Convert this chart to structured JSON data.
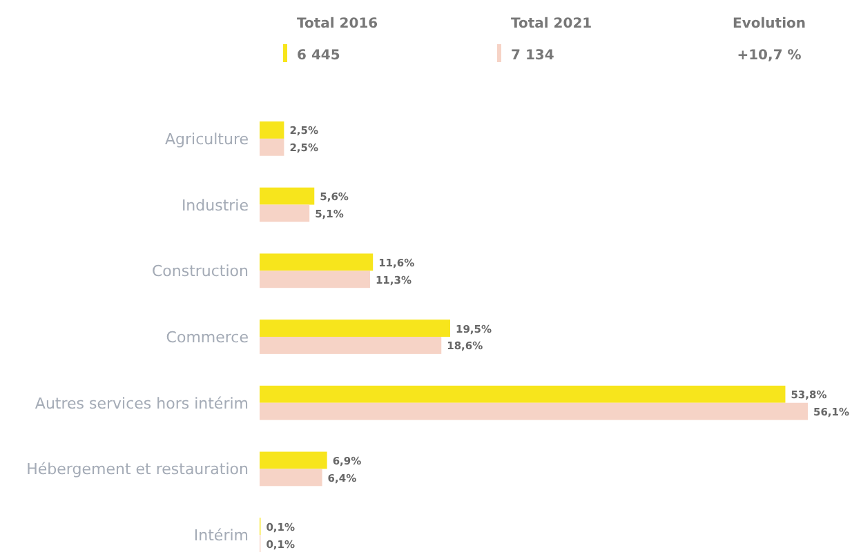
{
  "chart_data": {
    "type": "bar",
    "orientation": "horizontal",
    "categories": [
      "Agriculture",
      "Industrie",
      "Construction",
      "Commerce",
      "Autres services hors intérim",
      "Hébergement et restauration",
      "Intérim"
    ],
    "series": [
      {
        "name": "Total 2016",
        "color": "#f7e51c",
        "values": [
          2.5,
          5.6,
          11.6,
          19.5,
          53.8,
          6.9,
          0.1
        ],
        "value_labels": [
          "2,5%",
          "5,6%",
          "11,6%",
          "19,5%",
          "53,8%",
          "6,9%",
          "0,1%"
        ]
      },
      {
        "name": "Total 2021",
        "color": "#f6d3c6",
        "values": [
          2.5,
          5.1,
          11.3,
          18.6,
          56.1,
          6.4,
          0.1
        ],
        "value_labels": [
          "2,5%",
          "5,1%",
          "11,3%",
          "18,6%",
          "56,1%",
          "6,4%",
          "0,1%"
        ]
      }
    ],
    "annotations": [
      "6 445",
      "7 134",
      "Evolution",
      "+10,7 %"
    ],
    "legend": "top"
  }
}
